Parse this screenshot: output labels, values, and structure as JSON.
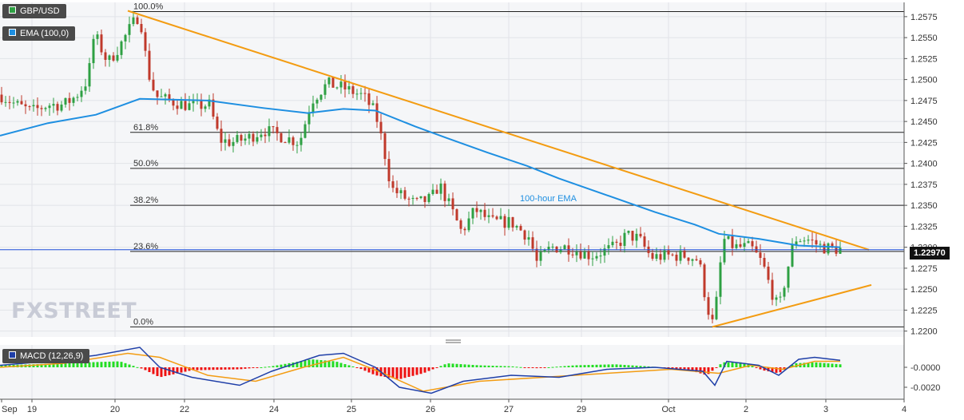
{
  "header": {
    "symbol_label": "GBP/USD",
    "ema_label": "EMA (100,0)",
    "macd_label": "MACD (12,26,9)",
    "brand_text": "FXSTREET",
    "price_tag": "1.22970"
  },
  "colors": {
    "up": "#2ea043",
    "down": "#c0392b",
    "ema": "#1e8fe1",
    "trend": "#f39c12",
    "macd_line": "#1f3fa8",
    "signal_line": "#f39c12",
    "hist_pos": "#22dd22",
    "hist_neg": "#ee1111"
  },
  "chart_data": {
    "type": "candlestick",
    "title": "GBP/USD",
    "price_axis": {
      "range": [
        1.2193,
        1.2592
      ],
      "ticks": [
        "1.2575",
        "1.2550",
        "1.2525",
        "1.2500",
        "1.2475",
        "1.2450",
        "1.2425",
        "1.2400",
        "1.2375",
        "1.2350",
        "1.2325",
        "1.2300",
        "1.2275",
        "1.2250",
        "1.2225",
        "1.2200"
      ]
    },
    "x_axis": {
      "ticks": [
        "Sep",
        "19",
        "20",
        "22",
        "24",
        "25",
        "26",
        "27",
        "29",
        "Oct",
        "2",
        "3",
        "4"
      ]
    },
    "fibonacci": [
      {
        "label": "100.0%",
        "price": 1.2581
      },
      {
        "label": "61.8%",
        "price": 1.2437
      },
      {
        "label": "50.0%",
        "price": 1.2394
      },
      {
        "label": "38.2%",
        "price": 1.235
      },
      {
        "label": "23.6%",
        "price": 1.2295
      },
      {
        "label": "0.0%",
        "price": 1.2205
      }
    ],
    "annotations": [
      {
        "text": "100-hour EMA"
      }
    ],
    "last_price": 1.2297,
    "macd_axis": {
      "ticks": [
        "-0.0000",
        "-0.0020"
      ]
    }
  }
}
